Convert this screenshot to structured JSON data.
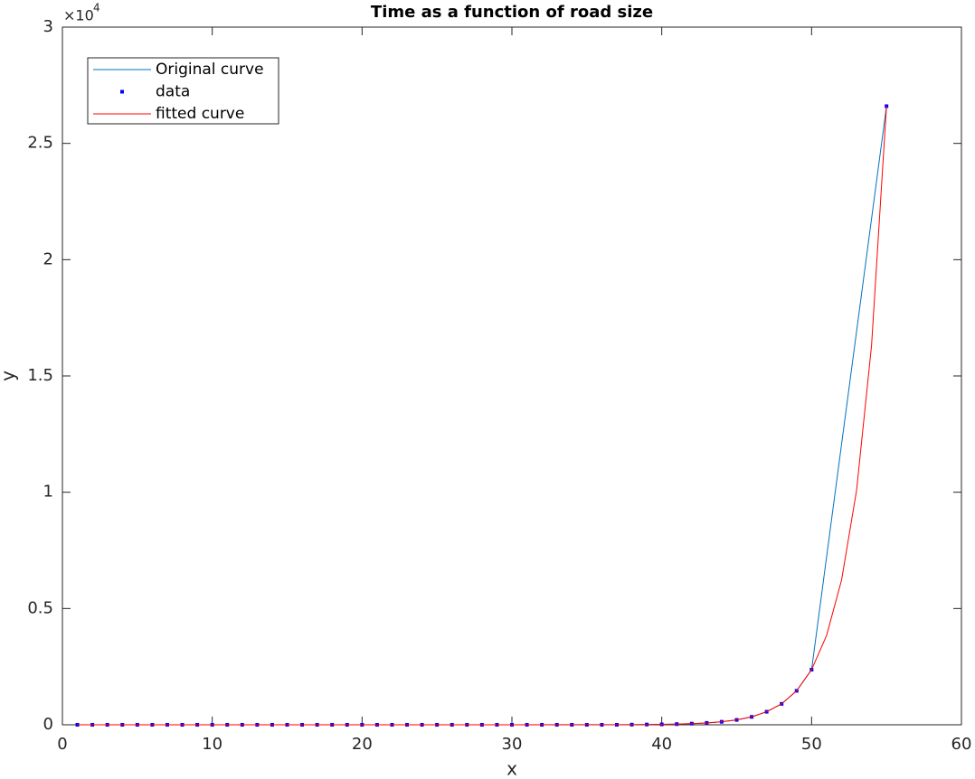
{
  "chart_data": {
    "type": "line",
    "title": "Time as a function of road size",
    "xlabel": "x",
    "ylabel": "y",
    "y_multiplier_base": "×10",
    "y_multiplier_exponent": "4",
    "xlim": [
      0,
      60
    ],
    "xticks": [
      0,
      10,
      20,
      30,
      40,
      50,
      60
    ],
    "ylim": [
      0,
      3
    ],
    "yticks": [
      0,
      0.5,
      1,
      1.5,
      2,
      2.5,
      3
    ],
    "legend": "upper left",
    "series": [
      {
        "name": "Original curve",
        "color": "#0072bd",
        "style": "line",
        "x": [
          1,
          2,
          3,
          4,
          5,
          6,
          7,
          8,
          9,
          10,
          11,
          12,
          13,
          14,
          15,
          16,
          17,
          18,
          19,
          20,
          21,
          22,
          23,
          24,
          25,
          26,
          27,
          28,
          29,
          30,
          31,
          32,
          33,
          34,
          35,
          36,
          37,
          38,
          39,
          40,
          41,
          42,
          43,
          44,
          45,
          46,
          47,
          48,
          49,
          50,
          55
        ],
        "values": [
          0,
          0,
          0,
          0,
          0,
          0,
          0,
          0,
          0,
          0,
          0,
          0,
          0,
          0,
          0,
          0,
          0,
          0,
          0,
          0,
          0,
          0,
          0,
          0,
          0,
          0,
          0,
          0,
          0,
          0,
          0,
          0,
          0,
          0,
          0,
          0,
          0,
          0.0007,
          0.0012,
          0.0019,
          0.003,
          0.005,
          0.008,
          0.013,
          0.021,
          0.034,
          0.056,
          0.09,
          0.146,
          0.237,
          2.66
        ]
      },
      {
        "name": "data",
        "color": "#0000ff",
        "style": "marker",
        "x": [
          1,
          2,
          3,
          4,
          5,
          6,
          7,
          8,
          9,
          10,
          11,
          12,
          13,
          14,
          15,
          16,
          17,
          18,
          19,
          20,
          21,
          22,
          23,
          24,
          25,
          26,
          27,
          28,
          29,
          30,
          31,
          32,
          33,
          34,
          35,
          36,
          37,
          38,
          39,
          40,
          41,
          42,
          43,
          44,
          45,
          46,
          47,
          48,
          49,
          50,
          55
        ],
        "values": [
          0,
          0,
          0,
          0,
          0,
          0,
          0,
          0,
          0,
          0,
          0,
          0,
          0,
          0,
          0,
          0,
          0,
          0,
          0,
          0,
          0,
          0,
          0,
          0,
          0,
          0,
          0,
          0,
          0,
          0,
          0,
          0,
          0,
          0,
          0,
          0,
          0,
          0.0007,
          0.0012,
          0.0019,
          0.003,
          0.005,
          0.008,
          0.013,
          0.021,
          0.034,
          0.056,
          0.09,
          0.146,
          0.237,
          2.66
        ]
      },
      {
        "name": "fitted curve",
        "color": "#ff0000",
        "style": "line",
        "x": [
          1,
          30,
          38,
          39,
          40,
          41,
          42,
          43,
          44,
          45,
          46,
          47,
          48,
          49,
          50,
          51,
          52,
          53,
          54,
          55
        ],
        "values": [
          0,
          0,
          0.0007,
          0.0012,
          0.0019,
          0.003,
          0.005,
          0.008,
          0.013,
          0.021,
          0.034,
          0.056,
          0.09,
          0.146,
          0.237,
          0.384,
          0.622,
          1.007,
          1.63,
          2.66
        ]
      }
    ]
  }
}
